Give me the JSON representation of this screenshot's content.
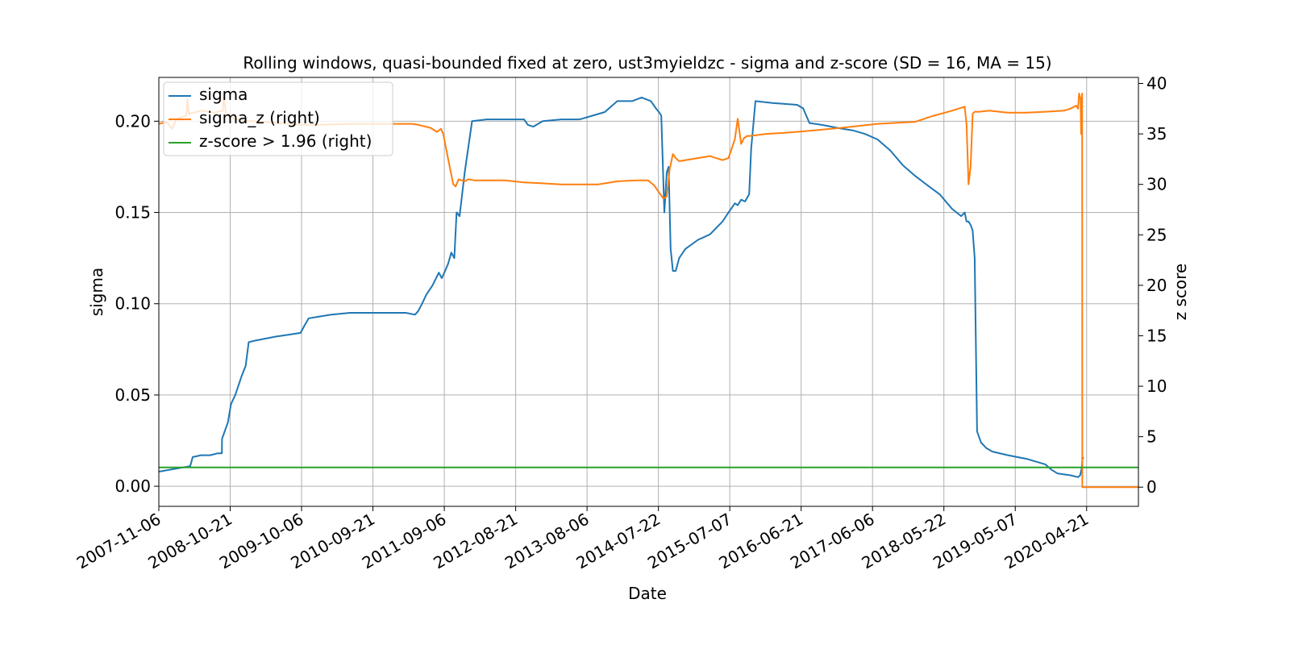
{
  "chart_data": {
    "type": "line",
    "title": "Rolling windows, quasi-bounded fixed at zero, ust3myieldzc - sigma and z-score (SD = 16, MA = 15)",
    "xlabel": "Date",
    "ylabel": "sigma",
    "y2label": "z score",
    "x_range": [
      "2007-11-06",
      "2020-12-31"
    ],
    "ylim": [
      -0.011,
      0.224
    ],
    "y2lim": [
      -1.9,
      40.6
    ],
    "yticks": [
      "0.00",
      "0.05",
      "0.10",
      "0.15",
      "0.20"
    ],
    "y2ticks": [
      "0",
      "5",
      "10",
      "15",
      "20",
      "25",
      "30",
      "35",
      "40"
    ],
    "xticks": [
      "2007-11-06",
      "2008-10-21",
      "2009-10-06",
      "2010-09-21",
      "2011-09-06",
      "2012-08-21",
      "2013-08-06",
      "2014-07-22",
      "2015-07-07",
      "2016-06-21",
      "2017-06-06",
      "2018-05-22",
      "2019-05-07",
      "2020-04-21"
    ],
    "grid": true,
    "legend_position": "upper-left",
    "series": [
      {
        "name": "sigma",
        "axis": "left",
        "color": "#1f77b4",
        "x": [
          "2007-11-06",
          "2008-02-15",
          "2008-04-08",
          "2008-04-20",
          "2008-06-01",
          "2008-07-15",
          "2008-08-20",
          "2008-09-10",
          "2008-09-11",
          "2008-10-10",
          "2008-10-25",
          "2008-11-15",
          "2008-12-15",
          "2009-01-05",
          "2009-01-20",
          "2009-03-01",
          "2009-06-01",
          "2009-08-01",
          "2009-10-01",
          "2009-10-20",
          "2009-11-10",
          "2010-01-01",
          "2010-03-01",
          "2010-06-01",
          "2010-09-01",
          "2011-01-01",
          "2011-03-01",
          "2011-04-15",
          "2011-05-01",
          "2011-05-20",
          "2011-06-10",
          "2011-07-10",
          "2011-08-10",
          "2011-08-25",
          "2011-09-10",
          "2011-09-25",
          "2011-10-10",
          "2011-10-25",
          "2011-11-05",
          "2011-11-20",
          "2011-12-15",
          "2012-01-20",
          "2012-04-01",
          "2012-08-01",
          "2012-10-01",
          "2012-10-20",
          "2012-11-15",
          "2013-01-01",
          "2013-04-01",
          "2013-07-01",
          "2013-09-01",
          "2013-11-01",
          "2014-01-01",
          "2014-03-15",
          "2014-05-01",
          "2014-06-15",
          "2014-07-10",
          "2014-07-25",
          "2014-08-05",
          "2014-08-20",
          "2014-09-01",
          "2014-09-10",
          "2014-09-20",
          "2014-10-01",
          "2014-10-15",
          "2014-11-01",
          "2014-12-01",
          "2015-02-01",
          "2015-04-01",
          "2015-06-01",
          "2015-07-01",
          "2015-08-01",
          "2015-08-15",
          "2015-09-01",
          "2015-09-20",
          "2015-10-10",
          "2015-10-20",
          "2015-11-10",
          "2016-02-01",
          "2016-06-01",
          "2016-07-01",
          "2016-08-01",
          "2016-10-01",
          "2017-01-01",
          "2017-03-01",
          "2017-05-01",
          "2017-07-01",
          "2017-09-01",
          "2017-11-01",
          "2018-01-01",
          "2018-03-01",
          "2018-05-01",
          "2018-07-01",
          "2018-08-15",
          "2018-09-01",
          "2018-09-10",
          "2018-09-20",
          "2018-10-01",
          "2018-10-10",
          "2018-10-20",
          "2018-11-01",
          "2018-11-20",
          "2018-12-15",
          "2019-01-15",
          "2019-04-01",
          "2019-07-01",
          "2019-10-01",
          "2019-11-01",
          "2019-12-01",
          "2020-02-01",
          "2020-03-10",
          "2020-03-20",
          "2020-03-28",
          "2020-04-01",
          "2020-04-05"
        ],
        "y": [
          0.008,
          0.01,
          0.011,
          0.016,
          0.017,
          0.017,
          0.018,
          0.018,
          0.026,
          0.035,
          0.045,
          0.05,
          0.06,
          0.066,
          0.079,
          0.08,
          0.082,
          0.083,
          0.084,
          0.088,
          0.092,
          0.093,
          0.094,
          0.095,
          0.095,
          0.095,
          0.095,
          0.094,
          0.096,
          0.1,
          0.105,
          0.11,
          0.117,
          0.114,
          0.118,
          0.122,
          0.128,
          0.125,
          0.15,
          0.148,
          0.172,
          0.2,
          0.201,
          0.201,
          0.201,
          0.198,
          0.197,
          0.2,
          0.201,
          0.201,
          0.203,
          0.205,
          0.211,
          0.211,
          0.213,
          0.211,
          0.207,
          0.205,
          0.203,
          0.15,
          0.172,
          0.175,
          0.13,
          0.118,
          0.118,
          0.125,
          0.13,
          0.135,
          0.138,
          0.145,
          0.15,
          0.155,
          0.154,
          0.157,
          0.156,
          0.16,
          0.185,
          0.211,
          0.21,
          0.209,
          0.207,
          0.199,
          0.198,
          0.196,
          0.195,
          0.193,
          0.19,
          0.184,
          0.176,
          0.17,
          0.165,
          0.16,
          0.152,
          0.148,
          0.15,
          0.145,
          0.145,
          0.143,
          0.14,
          0.125,
          0.03,
          0.024,
          0.021,
          0.019,
          0.017,
          0.015,
          0.012,
          0.009,
          0.007,
          0.006,
          0.005,
          0.006,
          0.01,
          0.016,
          0.015
        ]
      },
      {
        "name": "sigma_z (right)",
        "axis": "right",
        "color": "#ff7f0e",
        "x": [
          "2007-11-06",
          "2007-12-15",
          "2008-01-10",
          "2008-02-01",
          "2008-03-20",
          "2008-03-25",
          "2008-04-01",
          "2008-06-01",
          "2008-08-01",
          "2008-09-15",
          "2008-09-18",
          "2008-10-01",
          "2008-11-15",
          "2009-01-01",
          "2009-04-01",
          "2009-08-01",
          "2009-10-01",
          "2010-01-01",
          "2010-06-01",
          "2011-01-01",
          "2011-04-01",
          "2011-05-01",
          "2011-07-01",
          "2011-08-01",
          "2011-08-20",
          "2011-09-01",
          "2011-09-20",
          "2011-10-05",
          "2011-10-20",
          "2011-11-01",
          "2011-11-15",
          "2011-12-01",
          "2011-12-15",
          "2012-01-01",
          "2012-02-01",
          "2012-04-01",
          "2012-07-01",
          "2012-10-01",
          "2013-01-01",
          "2013-04-01",
          "2013-07-01",
          "2013-10-01",
          "2014-01-01",
          "2014-04-01",
          "2014-06-01",
          "2014-07-01",
          "2014-08-01",
          "2014-08-15",
          "2014-09-01",
          "2014-09-15",
          "2014-10-01",
          "2014-10-15",
          "2014-11-01",
          "2015-01-01",
          "2015-04-01",
          "2015-06-01",
          "2015-07-01",
          "2015-08-01",
          "2015-08-15",
          "2015-09-01",
          "2015-09-15",
          "2015-10-01",
          "2015-10-15",
          "2016-01-01",
          "2016-04-01",
          "2016-08-01",
          "2017-01-01",
          "2017-04-01",
          "2017-07-01",
          "2018-01-01",
          "2018-04-01",
          "2018-07-01",
          "2018-09-01",
          "2018-09-10",
          "2018-09-20",
          "2018-09-30",
          "2018-10-10",
          "2018-10-20",
          "2018-11-10",
          "2019-01-01",
          "2019-04-01",
          "2019-07-01",
          "2019-10-01",
          "2020-01-01",
          "2020-02-01",
          "2020-03-01",
          "2020-03-10",
          "2020-03-15",
          "2020-03-22",
          "2020-03-25",
          "2020-03-30",
          "2020-03-31",
          "2020-04-01",
          "2020-04-05",
          "2020-06-01",
          "2020-09-01",
          "2020-12-31"
        ],
        "y": [
          36.0,
          36.2,
          35.5,
          36.5,
          36.8,
          38.5,
          37.0,
          37.3,
          37.1,
          37.3,
          38.8,
          37.0,
          36.5,
          36.3,
          36.2,
          36.0,
          35.9,
          35.9,
          36.0,
          36.0,
          36.0,
          35.9,
          35.6,
          35.2,
          35.5,
          35.0,
          33.0,
          31.5,
          30.0,
          29.8,
          30.5,
          30.4,
          30.3,
          30.5,
          30.4,
          30.4,
          30.4,
          30.2,
          30.1,
          30.0,
          30.0,
          30.0,
          30.3,
          30.4,
          30.4,
          29.9,
          29.0,
          28.6,
          28.8,
          31.5,
          33.0,
          32.6,
          32.3,
          32.5,
          32.8,
          32.4,
          32.6,
          34.5,
          36.5,
          34.0,
          34.6,
          34.8,
          34.8,
          35.0,
          35.1,
          35.3,
          35.6,
          35.8,
          36.0,
          36.2,
          36.8,
          37.3,
          37.7,
          36.0,
          30.0,
          31.8,
          37.0,
          37.2,
          37.2,
          37.3,
          37.1,
          37.1,
          37.2,
          37.3,
          37.5,
          37.8,
          37.5,
          39.0,
          38.5,
          35.0,
          39.0,
          0.0,
          0.0,
          0.0,
          0.0,
          0.0,
          0.0
        ]
      },
      {
        "name": "z-score > 1.96 (right)",
        "axis": "right",
        "color": "#2ca02c",
        "x": [
          "2007-11-06",
          "2020-12-31"
        ],
        "y": [
          1.96,
          1.96
        ]
      }
    ]
  }
}
